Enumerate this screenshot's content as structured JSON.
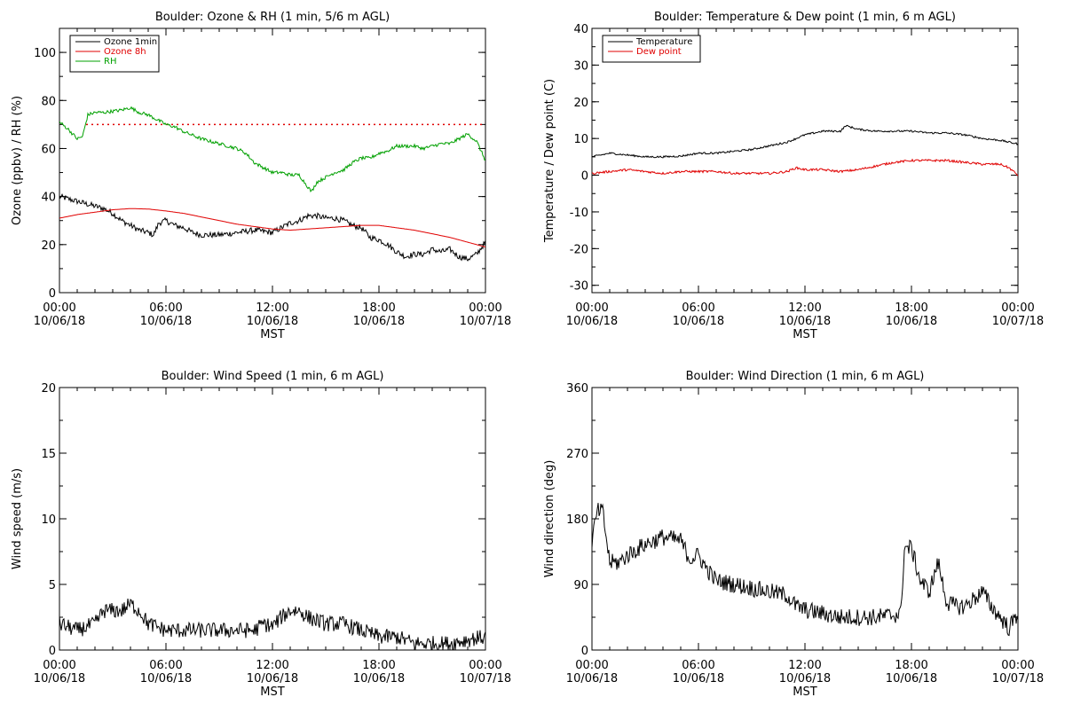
{
  "colors": {
    "black": "#000000",
    "red": "#e00000",
    "green": "#00a000"
  },
  "chart_data": [
    {
      "type": "line",
      "title": "Boulder: Ozone & RH (1 min, 5/6 m AGL)",
      "xlabel": "MST",
      "ylabel": "Ozone (ppbv) / RH (%)",
      "ylim": [
        0,
        110
      ],
      "yticks": [
        0,
        20,
        40,
        60,
        80,
        100
      ],
      "xlim_hours": [
        0,
        24
      ],
      "xticks": [
        {
          "time": "00:00",
          "date": "10/06/18"
        },
        {
          "time": "06:00",
          "date": "10/06/18"
        },
        {
          "time": "12:00",
          "date": "10/06/18"
        },
        {
          "time": "18:00",
          "date": "10/06/18"
        },
        {
          "time": "00:00",
          "date": "10/07/18"
        }
      ],
      "legend": {
        "placement": "top-left",
        "entries": [
          "Ozone 1min",
          "Ozone 8h",
          "RH"
        ]
      },
      "reference_line": {
        "y": 70,
        "style": "dotted",
        "color": "#e00000"
      },
      "series": [
        {
          "name": "Ozone 1min",
          "color": "#000000",
          "noise": 1.2,
          "x": [
            0,
            0.5,
            1,
            1.5,
            2,
            2.5,
            3,
            3.5,
            4,
            4.5,
            5,
            5.3,
            5.6,
            6,
            6.5,
            7,
            7.5,
            8,
            9,
            10,
            11,
            12,
            12.5,
            13,
            13.5,
            14,
            14.5,
            15,
            15.5,
            16,
            16.5,
            17,
            17.5,
            18,
            18.5,
            19,
            19.5,
            20,
            20.5,
            21,
            21.5,
            22,
            22.5,
            23,
            23.5,
            24
          ],
          "y": [
            40,
            39,
            38,
            37,
            36,
            35,
            33,
            30,
            28,
            26,
            25,
            24,
            29,
            30,
            28,
            27,
            25,
            24,
            24,
            25,
            26,
            25,
            27,
            29,
            30,
            32,
            32,
            31,
            31,
            30,
            28,
            27,
            23,
            22,
            20,
            17,
            15,
            16,
            16,
            18,
            17,
            18,
            15,
            14,
            16,
            21
          ]
        },
        {
          "name": "Ozone 8h",
          "color": "#e00000",
          "noise": 0,
          "x": [
            0,
            1,
            2,
            3,
            4,
            5,
            6,
            7,
            8,
            9,
            10,
            11,
            12,
            13,
            14,
            15,
            16,
            17,
            18,
            19,
            20,
            21,
            22,
            23,
            24
          ],
          "y": [
            31,
            32.5,
            33.5,
            34.5,
            35,
            34.8,
            34,
            33,
            31.5,
            30,
            28.5,
            27.5,
            26.5,
            26,
            26.5,
            27,
            27.5,
            28,
            28,
            27,
            26,
            24.5,
            23,
            21,
            19
          ]
        },
        {
          "name": "RH",
          "color": "#00a000",
          "noise": 0.7,
          "x": [
            0,
            0.5,
            1,
            1.3,
            1.6,
            2,
            2.5,
            3,
            3.5,
            4,
            4.5,
            5,
            5.5,
            6,
            6.5,
            7,
            8,
            9,
            10,
            10.5,
            11,
            11.5,
            12,
            12.5,
            13,
            13.5,
            14,
            14.2,
            14.5,
            15,
            15.5,
            16,
            16.5,
            17,
            17.5,
            18,
            18.5,
            19,
            20,
            20.5,
            21,
            21.5,
            22,
            22.5,
            23,
            23.5,
            24
          ],
          "y": [
            71,
            68,
            64,
            65,
            74,
            75,
            75,
            75.5,
            76,
            77,
            75,
            74,
            72,
            70,
            69,
            67,
            64,
            62,
            60,
            58,
            54,
            52,
            50,
            50,
            49,
            49,
            44,
            42,
            46,
            48,
            50,
            51,
            54,
            56,
            56,
            58,
            59,
            61,
            61,
            60,
            61,
            62,
            62,
            64,
            66,
            63,
            55
          ]
        }
      ]
    },
    {
      "type": "line",
      "title": "Boulder: Temperature & Dew point (1 min, 6 m AGL)",
      "xlabel": "MST",
      "ylabel": "Temperature / Dew point (C)",
      "ylim": [
        -32,
        40
      ],
      "yticks": [
        -30,
        -20,
        -10,
        0,
        10,
        20,
        30,
        40
      ],
      "xlim_hours": [
        0,
        24
      ],
      "xticks": [
        {
          "time": "00:00",
          "date": "10/06/18"
        },
        {
          "time": "06:00",
          "date": "10/06/18"
        },
        {
          "time": "12:00",
          "date": "10/06/18"
        },
        {
          "time": "18:00",
          "date": "10/06/18"
        },
        {
          "time": "00:00",
          "date": "10/07/18"
        }
      ],
      "legend": {
        "placement": "top-left",
        "entries": [
          "Temperature",
          "Dew point"
        ]
      },
      "series": [
        {
          "name": "Temperature",
          "color": "#000000",
          "noise": 0.25,
          "x": [
            0,
            1,
            2,
            3,
            4,
            5,
            6,
            7,
            8,
            9,
            10,
            11,
            12,
            13,
            14,
            14.3,
            15,
            16,
            17,
            18,
            19,
            20,
            21,
            22,
            23,
            24
          ],
          "y": [
            5,
            6,
            5.5,
            5,
            5,
            5.2,
            6,
            6,
            6.5,
            7,
            8,
            9,
            11,
            12,
            12,
            13.5,
            12.5,
            12,
            12,
            12,
            11.5,
            11.5,
            11,
            10,
            9.5,
            8.5
          ]
        },
        {
          "name": "Dew point",
          "color": "#e00000",
          "noise": 0.3,
          "x": [
            0,
            1,
            2,
            3,
            4,
            5,
            6,
            7,
            8,
            9,
            10,
            11,
            11.5,
            12,
            13,
            14,
            15,
            16,
            17,
            18,
            19,
            20,
            21,
            22,
            23,
            23.5,
            24
          ],
          "y": [
            0.5,
            1,
            1.5,
            1,
            0.5,
            1,
            1,
            1,
            0.5,
            0.5,
            0.5,
            1,
            2,
            1.5,
            1.5,
            1,
            1.5,
            2.5,
            3.5,
            4,
            4,
            4,
            3.5,
            3,
            3,
            2,
            0
          ]
        }
      ]
    },
    {
      "type": "line",
      "title": "Boulder: Wind Speed (1 min, 6 m AGL)",
      "xlabel": "MST",
      "ylabel": "Wind speed (m/s)",
      "ylim": [
        0,
        20
      ],
      "yticks": [
        0,
        5,
        10,
        15,
        20
      ],
      "xlim_hours": [
        0,
        24
      ],
      "xticks": [
        {
          "time": "00:00",
          "date": "10/06/18"
        },
        {
          "time": "06:00",
          "date": "10/06/18"
        },
        {
          "time": "12:00",
          "date": "10/06/18"
        },
        {
          "time": "18:00",
          "date": "10/06/18"
        },
        {
          "time": "00:00",
          "date": "10/07/18"
        }
      ],
      "series": [
        {
          "name": "",
          "color": "#000000",
          "noise": 0.6,
          "x": [
            0,
            1,
            2,
            2.5,
            3,
            3.5,
            4,
            4.5,
            5,
            6,
            7,
            8,
            9,
            10,
            11,
            11.5,
            12,
            12.5,
            13,
            13.5,
            14,
            15,
            16,
            17,
            18,
            19,
            20,
            21,
            22,
            23,
            24
          ],
          "y": [
            2,
            1.5,
            2,
            3,
            3,
            3,
            3.5,
            3,
            2,
            1.5,
            1.5,
            1.5,
            1.5,
            1.5,
            1.5,
            2,
            1.8,
            2.5,
            3,
            3,
            2.5,
            2,
            2,
            1.5,
            1,
            1,
            0.5,
            0.5,
            0.5,
            0.8,
            1
          ]
        }
      ]
    },
    {
      "type": "line",
      "title": "Boulder: Wind Direction (1 min, 6 m AGL)",
      "xlabel": "MST",
      "ylabel": "Wind direction (deg)",
      "ylim": [
        0,
        360
      ],
      "yticks": [
        0,
        90,
        180,
        270,
        360
      ],
      "xlim_hours": [
        0,
        24
      ],
      "xticks": [
        {
          "time": "00:00",
          "date": "10/06/18"
        },
        {
          "time": "06:00",
          "date": "10/06/18"
        },
        {
          "time": "12:00",
          "date": "10/06/18"
        },
        {
          "time": "18:00",
          "date": "10/06/18"
        },
        {
          "time": "00:00",
          "date": "10/07/18"
        }
      ],
      "series": [
        {
          "name": "",
          "color": "#000000",
          "noise": 12,
          "x": [
            0,
            0.3,
            0.6,
            1,
            1.5,
            2,
            3,
            4,
            5,
            5.5,
            6,
            6.5,
            7,
            8,
            9,
            10,
            11,
            11.5,
            12,
            13,
            14,
            15,
            16,
            17,
            17.4,
            17.6,
            18,
            18.5,
            19,
            19.5,
            20,
            20.5,
            21,
            21.5,
            22,
            22.5,
            23,
            23.5,
            24
          ],
          "y": [
            150,
            190,
            190,
            120,
            120,
            130,
            145,
            155,
            150,
            125,
            130,
            110,
            95,
            90,
            85,
            80,
            75,
            60,
            55,
            50,
            45,
            45,
            45,
            48,
            50,
            140,
            140,
            95,
            80,
            120,
            65,
            60,
            60,
            70,
            80,
            60,
            45,
            30,
            50
          ]
        }
      ]
    }
  ]
}
